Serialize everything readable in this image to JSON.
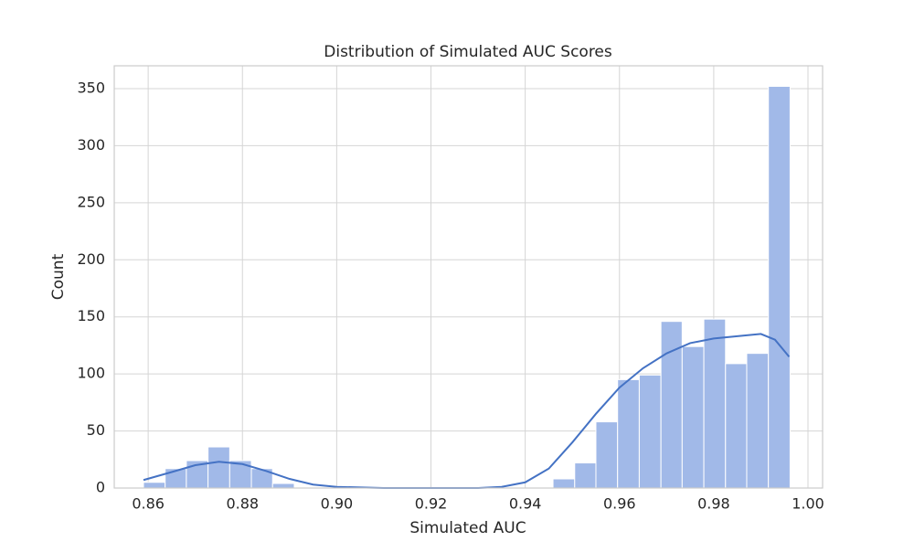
{
  "chart_data": {
    "type": "histogram",
    "title": "Distribution of Simulated AUC Scores",
    "x_label": "Simulated AUC",
    "y_label": "Count",
    "bins": [
      0.859,
      0.8636,
      0.8681,
      0.8727,
      0.8773,
      0.8819,
      0.8864,
      0.891,
      0.8956,
      0.9002,
      0.9047,
      0.9093,
      0.9139,
      0.9184,
      0.923,
      0.9276,
      0.9322,
      0.9367,
      0.9413,
      0.9459,
      0.9505,
      0.955,
      0.9596,
      0.9642,
      0.9688,
      0.9733,
      0.9779,
      0.9825,
      0.987,
      0.9916,
      0.9962
    ],
    "values": [
      5,
      17,
      24,
      36,
      24,
      17,
      4,
      0,
      0,
      0,
      0,
      0,
      0,
      0,
      0,
      0,
      0,
      0,
      0,
      8,
      22,
      58,
      95,
      99,
      146,
      124,
      148,
      109,
      118,
      352
    ],
    "color": "#a1b9e8",
    "kde": {
      "color": "#4472c4",
      "x": [
        0.859,
        0.865,
        0.87,
        0.875,
        0.88,
        0.885,
        0.89,
        0.895,
        0.9,
        0.91,
        0.92,
        0.93,
        0.935,
        0.94,
        0.945,
        0.95,
        0.955,
        0.96,
        0.965,
        0.97,
        0.975,
        0.98,
        0.985,
        0.99,
        0.993,
        0.996
      ],
      "values": [
        7,
        14,
        20,
        23,
        21,
        15,
        8,
        3,
        1,
        0,
        0,
        0,
        1,
        5,
        17,
        40,
        65,
        88,
        105,
        118,
        127,
        131,
        133,
        135,
        130,
        115
      ]
    },
    "xlim": [
      0.8528,
      1.0031
    ],
    "xticks": [
      0.86,
      0.88,
      {
        "value": 0.9,
        "label": "0.90"
      },
      0.92,
      0.94,
      0.96,
      0.98,
      {
        "value": 1.0,
        "label": "1.00"
      }
    ],
    "ylim": [
      0,
      370
    ],
    "yticks": [
      0,
      50,
      100,
      150,
      200,
      250,
      300,
      350
    ],
    "grid": true
  }
}
